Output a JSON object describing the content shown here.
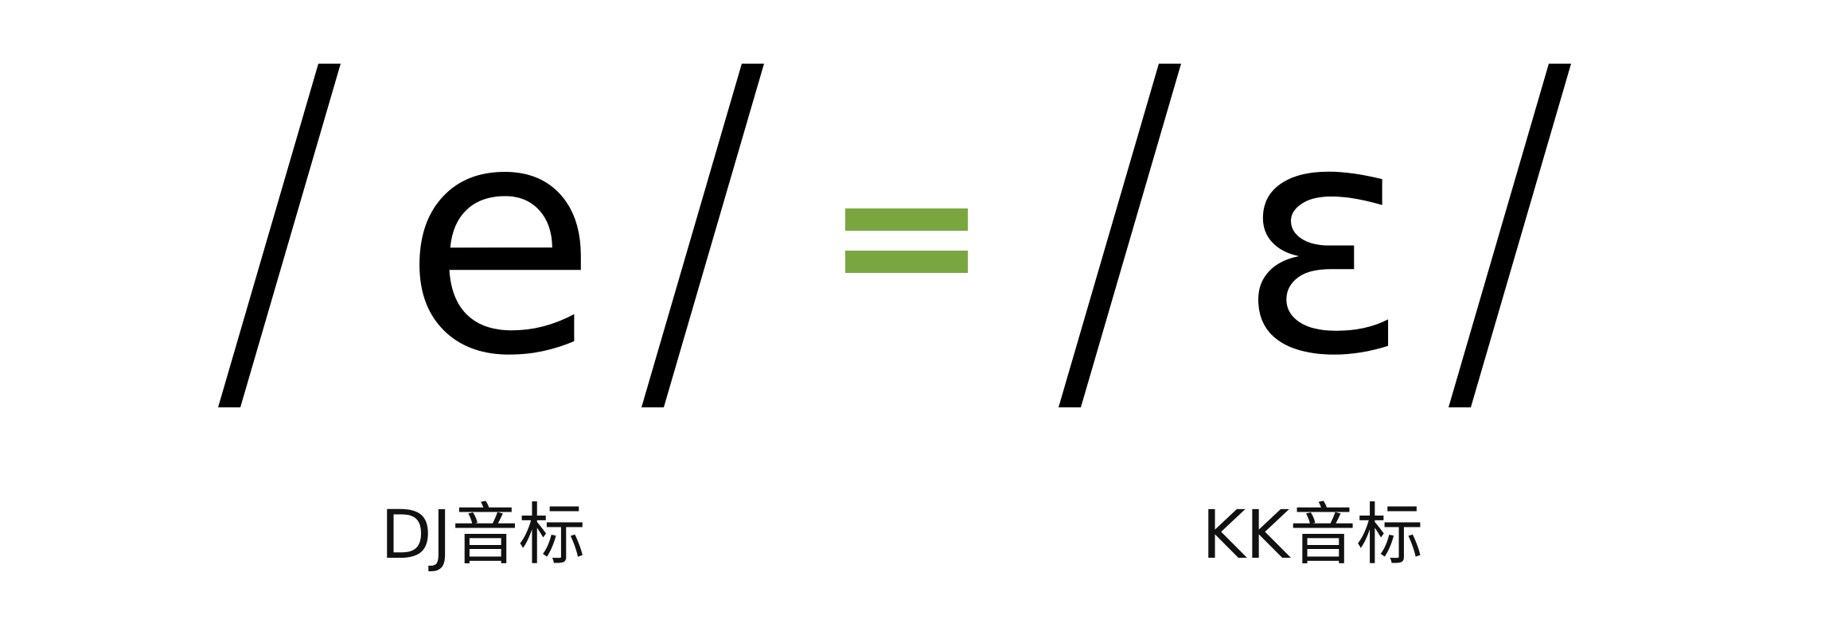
{
  "left": {
    "symbol": "/e/",
    "label": "DJ音标"
  },
  "equals": {
    "symbol": "=",
    "color": "#7aa640"
  },
  "right": {
    "symbol": "/ɛ/",
    "label": "KK音标"
  },
  "colors": {
    "text": "#000000",
    "background": "#ffffff",
    "accent": "#7aa640"
  }
}
